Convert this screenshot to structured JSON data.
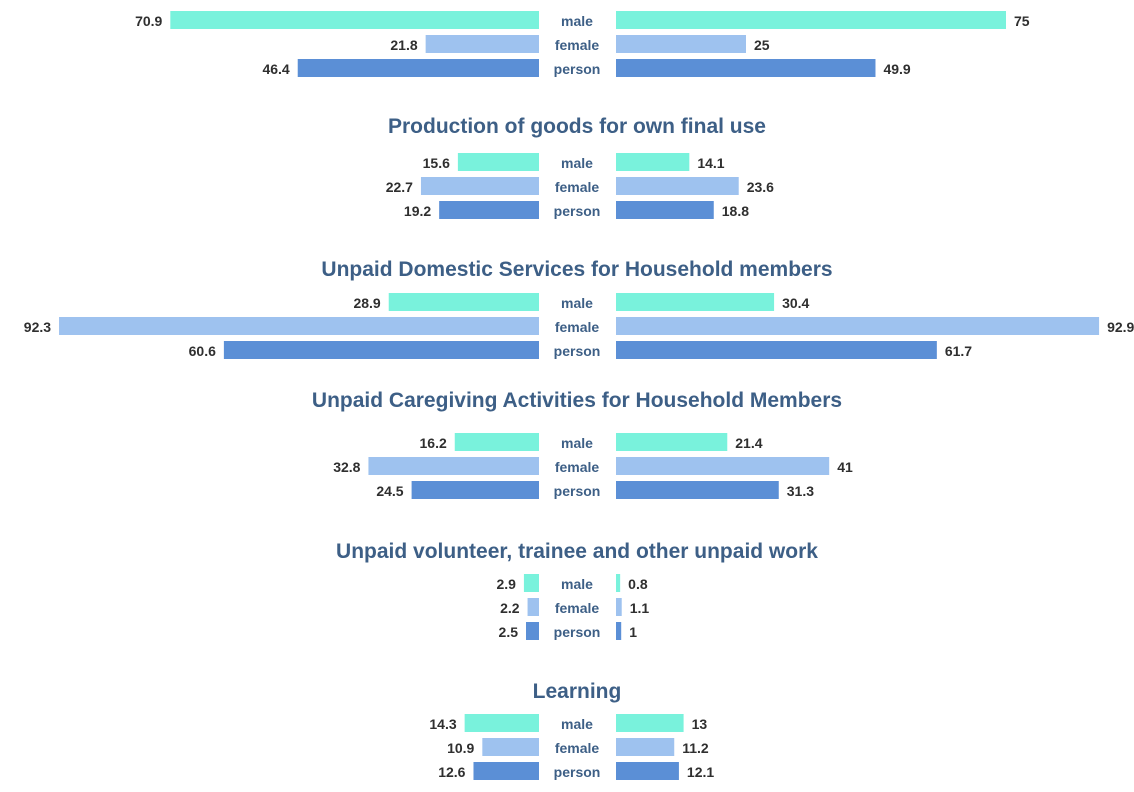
{
  "colors": {
    "male": "#79f2dc",
    "female": "#9ec2ef",
    "person": "#5b8fd6",
    "title": "#3d5f86"
  },
  "chart_data": [
    {
      "type": "bar",
      "title": "",
      "categories": [
        "male",
        "female",
        "person"
      ],
      "series": [
        {
          "name": "left",
          "values": [
            70.9,
            21.8,
            46.4
          ]
        },
        {
          "name": "right",
          "values": [
            75,
            25,
            49.9
          ]
        }
      ]
    },
    {
      "type": "bar",
      "title": "Production of goods for own final use",
      "categories": [
        "male",
        "female",
        "person"
      ],
      "series": [
        {
          "name": "left",
          "values": [
            15.6,
            22.7,
            19.2
          ]
        },
        {
          "name": "right",
          "values": [
            14.1,
            23.6,
            18.8
          ]
        }
      ]
    },
    {
      "type": "bar",
      "title": "Unpaid Domestic Services for Household members",
      "categories": [
        "male",
        "female",
        "person"
      ],
      "series": [
        {
          "name": "left",
          "values": [
            28.9,
            92.3,
            60.6
          ]
        },
        {
          "name": "right",
          "values": [
            30.4,
            92.9,
            61.7
          ]
        }
      ]
    },
    {
      "type": "bar",
      "title": "Unpaid Caregiving Activities for Household Members",
      "categories": [
        "male",
        "female",
        "person"
      ],
      "series": [
        {
          "name": "left",
          "values": [
            16.2,
            32.8,
            24.5
          ]
        },
        {
          "name": "right",
          "values": [
            21.4,
            41,
            31.3
          ]
        }
      ]
    },
    {
      "type": "bar",
      "title": "Unpaid volunteer, trainee and other unpaid work",
      "categories": [
        "male",
        "female",
        "person"
      ],
      "series": [
        {
          "name": "left",
          "values": [
            2.9,
            2.2,
            2.5
          ]
        },
        {
          "name": "right",
          "values": [
            0.8,
            1.1,
            1
          ]
        }
      ]
    },
    {
      "type": "bar",
      "title": "Learning",
      "categories": [
        "male",
        "female",
        "person"
      ],
      "series": [
        {
          "name": "left",
          "values": [
            14.3,
            10.9,
            12.6
          ]
        },
        {
          "name": "right",
          "values": [
            13,
            11.2,
            12.1
          ]
        }
      ]
    }
  ]
}
